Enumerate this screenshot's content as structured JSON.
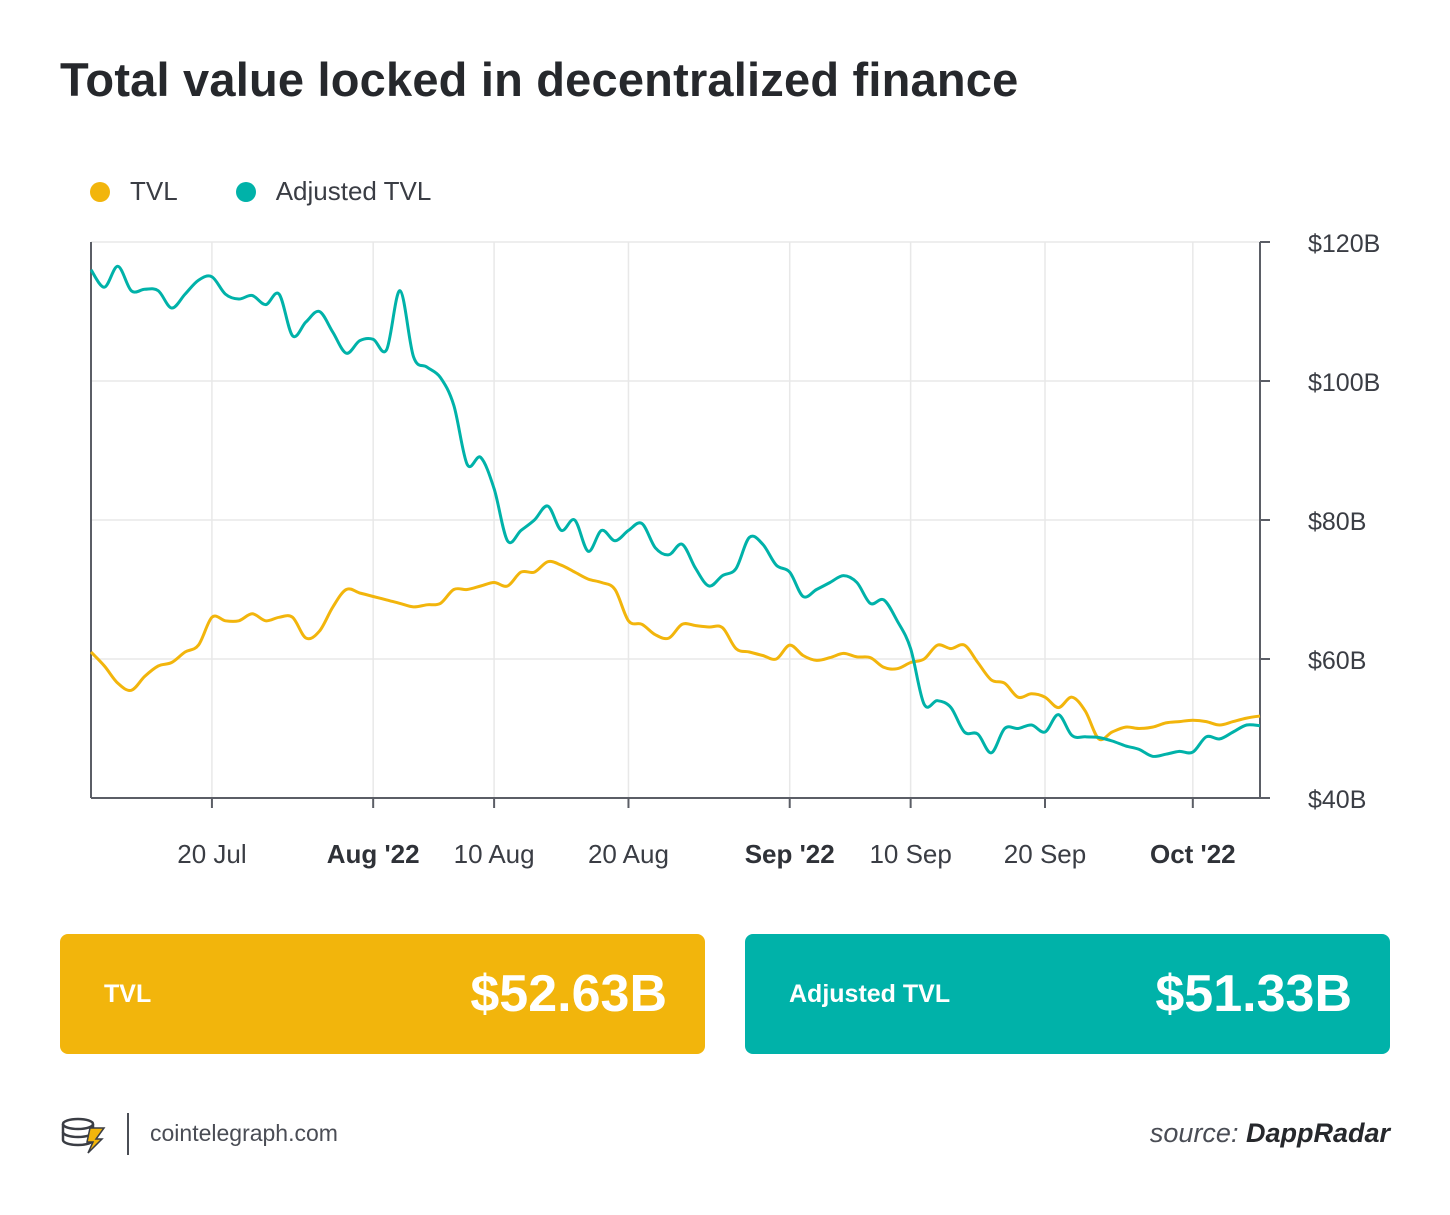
{
  "colors": {
    "tvl": "#f2b50c",
    "adjusted": "#00b2a9",
    "card_tvl": "#f2b50c",
    "card_adjusted": "#00b2a9",
    "grid": "#e8e8e8",
    "axis": "#5b5e66"
  },
  "footer": {
    "site": "cointelegraph.com",
    "source_prefix": "source:",
    "source_name": "DappRadar",
    "logo_icon": "cointelegraph-coin-stack-icon"
  },
  "cards": {
    "tvl": {
      "label": "TVL",
      "value": "$52.63B"
    },
    "adjusted": {
      "label": "Adjusted TVL",
      "value": "$51.33B"
    }
  },
  "chart_data": {
    "type": "line",
    "title": "Total value locked in decentralized finance",
    "legend": [
      "TVL",
      "Adjusted TVL"
    ],
    "legend_position": "top-left",
    "x_axis": {
      "type": "date",
      "start": "2022-07-11",
      "end": "2022-10-06",
      "ticks": [
        {
          "date": "2022-07-20",
          "label": "20 Jul",
          "bold": false
        },
        {
          "date": "2022-08-01",
          "label": "Aug '22",
          "bold": true
        },
        {
          "date": "2022-08-10",
          "label": "10 Aug",
          "bold": false
        },
        {
          "date": "2022-08-20",
          "label": "20 Aug",
          "bold": false
        },
        {
          "date": "2022-09-01",
          "label": "Sep '22",
          "bold": true
        },
        {
          "date": "2022-09-10",
          "label": "10 Sep",
          "bold": false
        },
        {
          "date": "2022-09-20",
          "label": "20 Sep",
          "bold": false
        },
        {
          "date": "2022-10-01",
          "label": "Oct '22",
          "bold": true
        }
      ]
    },
    "y_axis": {
      "position": "right",
      "ylim": [
        40,
        120
      ],
      "unit": "B",
      "ticks": [
        {
          "value": 120,
          "label": "$120B"
        },
        {
          "value": 100,
          "label": "$100B"
        },
        {
          "value": 80,
          "label": "$80B"
        },
        {
          "value": 60,
          "label": "$60B"
        },
        {
          "value": 40,
          "label": "$40B"
        }
      ]
    },
    "grid": true,
    "series": [
      {
        "name": "TVL",
        "points": [
          [
            "2022-07-11",
            61.0
          ],
          [
            "2022-07-12",
            59.0
          ],
          [
            "2022-07-13",
            56.5
          ],
          [
            "2022-07-14",
            55.5
          ],
          [
            "2022-07-15",
            57.5
          ],
          [
            "2022-07-16",
            59.0
          ],
          [
            "2022-07-17",
            59.5
          ],
          [
            "2022-07-18",
            61.0
          ],
          [
            "2022-07-19",
            62.0
          ],
          [
            "2022-07-20",
            66.0
          ],
          [
            "2022-07-21",
            65.5
          ],
          [
            "2022-07-22",
            65.5
          ],
          [
            "2022-07-23",
            66.5
          ],
          [
            "2022-07-24",
            65.5
          ],
          [
            "2022-07-25",
            66.0
          ],
          [
            "2022-07-26",
            66.0
          ],
          [
            "2022-07-27",
            63.0
          ],
          [
            "2022-07-28",
            64.0
          ],
          [
            "2022-07-29",
            67.5
          ],
          [
            "2022-07-30",
            70.0
          ],
          [
            "2022-07-31",
            69.5
          ],
          [
            "2022-08-01",
            69.0
          ],
          [
            "2022-08-02",
            68.5
          ],
          [
            "2022-08-03",
            68.0
          ],
          [
            "2022-08-04",
            67.5
          ],
          [
            "2022-08-05",
            67.8
          ],
          [
            "2022-08-06",
            68.0
          ],
          [
            "2022-08-07",
            70.0
          ],
          [
            "2022-08-08",
            70.0
          ],
          [
            "2022-08-09",
            70.5
          ],
          [
            "2022-08-10",
            71.0
          ],
          [
            "2022-08-11",
            70.5
          ],
          [
            "2022-08-12",
            72.5
          ],
          [
            "2022-08-13",
            72.5
          ],
          [
            "2022-08-14",
            74.0
          ],
          [
            "2022-08-15",
            73.5
          ],
          [
            "2022-08-16",
            72.5
          ],
          [
            "2022-08-17",
            71.5
          ],
          [
            "2022-08-18",
            71.0
          ],
          [
            "2022-08-19",
            70.0
          ],
          [
            "2022-08-20",
            65.5
          ],
          [
            "2022-08-21",
            65.0
          ],
          [
            "2022-08-22",
            63.5
          ],
          [
            "2022-08-23",
            63.0
          ],
          [
            "2022-08-24",
            65.0
          ],
          [
            "2022-08-25",
            64.8
          ],
          [
            "2022-08-26",
            64.6
          ],
          [
            "2022-08-27",
            64.5
          ],
          [
            "2022-08-28",
            61.5
          ],
          [
            "2022-08-29",
            61.0
          ],
          [
            "2022-08-30",
            60.5
          ],
          [
            "2022-08-31",
            60.0
          ],
          [
            "2022-09-01",
            62.0
          ],
          [
            "2022-09-02",
            60.5
          ],
          [
            "2022-09-03",
            59.8
          ],
          [
            "2022-09-04",
            60.2
          ],
          [
            "2022-09-05",
            60.8
          ],
          [
            "2022-09-06",
            60.3
          ],
          [
            "2022-09-07",
            60.2
          ],
          [
            "2022-09-08",
            58.8
          ],
          [
            "2022-09-09",
            58.6
          ],
          [
            "2022-09-10",
            59.5
          ],
          [
            "2022-09-11",
            60.0
          ],
          [
            "2022-09-12",
            62.0
          ],
          [
            "2022-09-13",
            61.5
          ],
          [
            "2022-09-14",
            62.0
          ],
          [
            "2022-09-15",
            59.5
          ],
          [
            "2022-09-16",
            57.0
          ],
          [
            "2022-09-17",
            56.5
          ],
          [
            "2022-09-18",
            54.5
          ],
          [
            "2022-09-19",
            55.0
          ],
          [
            "2022-09-20",
            54.5
          ],
          [
            "2022-09-21",
            53.0
          ],
          [
            "2022-09-22",
            54.5
          ],
          [
            "2022-09-23",
            52.5
          ],
          [
            "2022-09-24",
            48.5
          ],
          [
            "2022-09-25",
            49.5
          ],
          [
            "2022-09-26",
            50.2
          ],
          [
            "2022-09-27",
            50.0
          ],
          [
            "2022-09-28",
            50.2
          ],
          [
            "2022-09-29",
            50.8
          ],
          [
            "2022-09-30",
            51.0
          ],
          [
            "2022-10-01",
            51.2
          ],
          [
            "2022-10-02",
            51.0
          ],
          [
            "2022-10-03",
            50.5
          ],
          [
            "2022-10-04",
            51.0
          ],
          [
            "2022-10-05",
            51.5
          ],
          [
            "2022-10-06",
            51.8
          ]
        ]
      },
      {
        "name": "Adjusted TVL",
        "points": [
          [
            "2022-07-11",
            116.0
          ],
          [
            "2022-07-12",
            113.5
          ],
          [
            "2022-07-13",
            116.5
          ],
          [
            "2022-07-14",
            113.0
          ],
          [
            "2022-07-15",
            113.2
          ],
          [
            "2022-07-16",
            113.0
          ],
          [
            "2022-07-17",
            110.5
          ],
          [
            "2022-07-18",
            112.5
          ],
          [
            "2022-07-19",
            114.5
          ],
          [
            "2022-07-20",
            115.0
          ],
          [
            "2022-07-21",
            112.5
          ],
          [
            "2022-07-22",
            111.8
          ],
          [
            "2022-07-23",
            112.3
          ],
          [
            "2022-07-24",
            111.0
          ],
          [
            "2022-07-25",
            112.5
          ],
          [
            "2022-07-26",
            106.5
          ],
          [
            "2022-07-27",
            108.5
          ],
          [
            "2022-07-28",
            110.0
          ],
          [
            "2022-07-29",
            107.0
          ],
          [
            "2022-07-30",
            104.0
          ],
          [
            "2022-07-31",
            105.8
          ],
          [
            "2022-08-01",
            106.0
          ],
          [
            "2022-08-02",
            104.5
          ],
          [
            "2022-08-03",
            113.0
          ],
          [
            "2022-08-04",
            103.5
          ],
          [
            "2022-08-05",
            102.0
          ],
          [
            "2022-08-06",
            100.5
          ],
          [
            "2022-08-07",
            96.5
          ],
          [
            "2022-08-08",
            88.0
          ],
          [
            "2022-08-09",
            89.0
          ],
          [
            "2022-08-10",
            84.5
          ],
          [
            "2022-08-11",
            77.0
          ],
          [
            "2022-08-12",
            78.5
          ],
          [
            "2022-08-13",
            80.0
          ],
          [
            "2022-08-14",
            82.0
          ],
          [
            "2022-08-15",
            78.5
          ],
          [
            "2022-08-16",
            80.0
          ],
          [
            "2022-08-17",
            75.5
          ],
          [
            "2022-08-18",
            78.5
          ],
          [
            "2022-08-19",
            77.0
          ],
          [
            "2022-08-20",
            78.5
          ],
          [
            "2022-08-21",
            79.5
          ],
          [
            "2022-08-22",
            76.0
          ],
          [
            "2022-08-23",
            75.0
          ],
          [
            "2022-08-24",
            76.5
          ],
          [
            "2022-08-25",
            73.0
          ],
          [
            "2022-08-26",
            70.5
          ],
          [
            "2022-08-27",
            72.0
          ],
          [
            "2022-08-28",
            73.0
          ],
          [
            "2022-08-29",
            77.5
          ],
          [
            "2022-08-30",
            76.5
          ],
          [
            "2022-08-31",
            73.5
          ],
          [
            "2022-09-01",
            72.5
          ],
          [
            "2022-09-02",
            69.0
          ],
          [
            "2022-09-03",
            70.0
          ],
          [
            "2022-09-04",
            71.0
          ],
          [
            "2022-09-05",
            72.0
          ],
          [
            "2022-09-06",
            71.0
          ],
          [
            "2022-09-07",
            68.0
          ],
          [
            "2022-09-08",
            68.5
          ],
          [
            "2022-09-09",
            65.5
          ],
          [
            "2022-09-10",
            61.5
          ],
          [
            "2022-09-11",
            53.5
          ],
          [
            "2022-09-12",
            54.0
          ],
          [
            "2022-09-13",
            53.0
          ],
          [
            "2022-09-14",
            49.5
          ],
          [
            "2022-09-15",
            49.2
          ],
          [
            "2022-09-16",
            46.5
          ],
          [
            "2022-09-17",
            50.0
          ],
          [
            "2022-09-18",
            50.0
          ],
          [
            "2022-09-19",
            50.5
          ],
          [
            "2022-09-20",
            49.5
          ],
          [
            "2022-09-21",
            52.0
          ],
          [
            "2022-09-22",
            49.0
          ],
          [
            "2022-09-23",
            48.8
          ],
          [
            "2022-09-24",
            48.7
          ],
          [
            "2022-09-25",
            48.2
          ],
          [
            "2022-09-26",
            47.5
          ],
          [
            "2022-09-27",
            47.0
          ],
          [
            "2022-09-28",
            46.0
          ],
          [
            "2022-09-29",
            46.3
          ],
          [
            "2022-09-30",
            46.7
          ],
          [
            "2022-10-01",
            46.6
          ],
          [
            "2022-10-02",
            48.8
          ],
          [
            "2022-10-03",
            48.5
          ],
          [
            "2022-10-04",
            49.5
          ],
          [
            "2022-10-05",
            50.5
          ],
          [
            "2022-10-06",
            50.4
          ]
        ]
      }
    ]
  }
}
